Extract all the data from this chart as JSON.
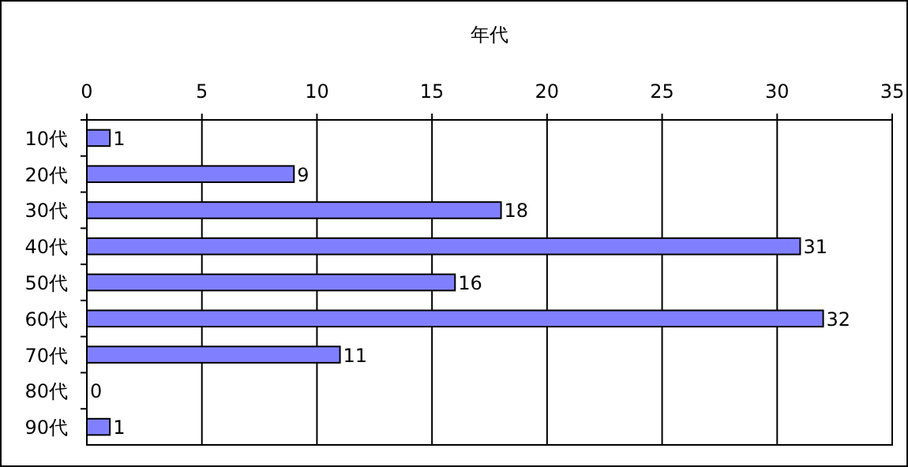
{
  "chart_data": {
    "type": "bar",
    "orientation": "horizontal",
    "title": "年代",
    "categories": [
      "10代",
      "20代",
      "30代",
      "40代",
      "50代",
      "60代",
      "70代",
      "80代",
      "90代"
    ],
    "values": [
      1,
      9,
      18,
      31,
      16,
      32,
      11,
      0,
      1
    ],
    "color": "#8080ff",
    "xlim": [
      0,
      35
    ],
    "xticks": [
      0,
      5,
      10,
      15,
      20,
      25,
      30,
      35
    ],
    "grid": "x",
    "data_labels": true
  }
}
